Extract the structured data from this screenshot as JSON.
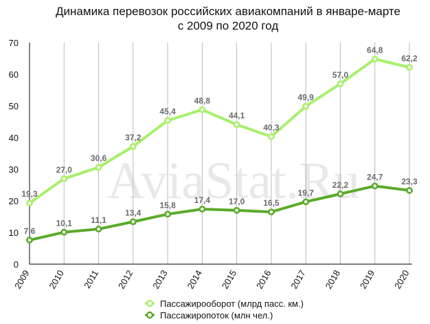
{
  "chart_data": {
    "type": "line",
    "title_lines": [
      "Динамика перевозок российских авиакомпаний в январе-марте",
      "с 2009 по 2020 год"
    ],
    "watermark": "AviaStat.Ru",
    "x": [
      "2009",
      "2010",
      "2011",
      "2012",
      "2013",
      "2014",
      "2015",
      "2016",
      "2017",
      "2018",
      "2019",
      "2020"
    ],
    "ylim": [
      0,
      70
    ],
    "yticks": [
      "0",
      "10",
      "20",
      "30",
      "40",
      "50",
      "60",
      "70"
    ],
    "grid": "vertical",
    "legend_position": "bottom",
    "series": [
      {
        "name": "Пассажирооборот (млрд пасс. км.)",
        "color": "#a6f06a",
        "values": [
          19.3,
          27.0,
          30.6,
          37.2,
          45.4,
          48.8,
          44.1,
          40.3,
          49.9,
          57.0,
          64.8,
          62.2
        ],
        "labels": [
          "19,3",
          "27,0",
          "30,6",
          "37,2",
          "45,4",
          "48,8",
          "44,1",
          "40,3",
          "49,9",
          "57,0",
          "64,8",
          "62,2"
        ]
      },
      {
        "name": "Пассажиропоток (млн чел.)",
        "color": "#5aaa2a",
        "values": [
          7.6,
          10.1,
          11.1,
          13.4,
          15.8,
          17.4,
          17.0,
          16.5,
          19.7,
          22.2,
          24.7,
          23.3
        ],
        "labels": [
          "7,6",
          "10,1",
          "11,1",
          "13,4",
          "15,8",
          "17,4",
          "17,0",
          "16,5",
          "19,7",
          "22,2",
          "24,7",
          "23,3"
        ]
      }
    ]
  }
}
